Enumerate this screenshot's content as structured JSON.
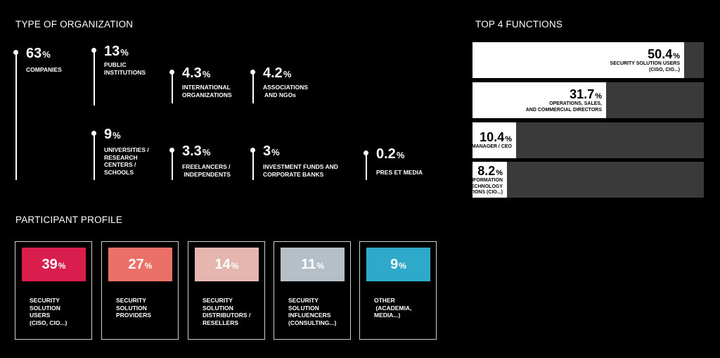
{
  "org": {
    "title": "TYPE OF ORGANIZATION",
    "items": [
      {
        "value": "63",
        "unit": "%",
        "label": "COMPANIES"
      },
      {
        "value": "13",
        "unit": "%",
        "label": "PUBLIC\nINSTITUTIONS"
      },
      {
        "value": "4.3",
        "unit": "%",
        "label": "INTERNATIONAL\nORGANIZATIONS"
      },
      {
        "value": "4.2",
        "unit": "%",
        "label": "ASSOCIATIONS\n AND NGOs"
      },
      {
        "value": "9",
        "unit": "%",
        "label": "UNIVERSITIES /\nRESEARCH\nCENTERS /\nSCHOOLS"
      },
      {
        "value": "3.3",
        "unit": "%",
        "label": "FREELANCERS /\n INDEPENDENTS"
      },
      {
        "value": "3",
        "unit": "%",
        "label": "INVESTMENT FUNDS AND\nCORPORATE BANKS"
      },
      {
        "value": "0.2",
        "unit": "%",
        "label": "PRES ET MEDIA"
      }
    ]
  },
  "profile": {
    "title": "PARTICIPANT PROFILE",
    "items": [
      {
        "value": "39",
        "unit": "%",
        "label": "SECURITY\nSOLUTION\nUSERS\n(CISO, CIO...)",
        "color": "#d91e4e"
      },
      {
        "value": "27",
        "unit": "%",
        "label": "SECURITY\nSOLUTION\nPROVIDERS",
        "color": "#ea7068"
      },
      {
        "value": "14",
        "unit": "%",
        "label": "SECURITY\nSOLUTION\nDISTRIBUTORS /\nRESELLERS",
        "color": "#e5b6ad"
      },
      {
        "value": "11",
        "unit": "%",
        "label": "SECURITY\nSOLUTION\nINFLUENCERS\n(CONSULTING...)",
        "color": "#b5bfc7"
      },
      {
        "value": "9",
        "unit": "%",
        "label": "OTHER\n (ACADEMIA,\nMEDIA...)",
        "color": "#2ea9c9"
      }
    ]
  },
  "functions": {
    "title": "TOP 4 FUNCTIONS",
    "items": [
      {
        "value": "50.4",
        "unit": "%",
        "label": "SECURITY SOLUTION USERS\n(CISO, CIO...)"
      },
      {
        "value": "31.7",
        "unit": "%",
        "label": "OPERATIONS, SALES,\nAND COMMERCIAL DIRECTORS"
      },
      {
        "value": "10.4",
        "unit": "%",
        "label": "GENERAL MANAGER / CEO"
      },
      {
        "value": "8.2",
        "unit": "%",
        "label": "OTHER INFORMATION\nTECHNOLOGY\nFUNCTIONS (CIO...)"
      }
    ]
  },
  "chart_data": [
    {
      "type": "bar",
      "title": "TYPE OF ORGANIZATION",
      "categories": [
        "COMPANIES",
        "PUBLIC INSTITUTIONS",
        "INTERNATIONAL ORGANIZATIONS",
        "ASSOCIATIONS AND NGOs",
        "UNIVERSITIES / RESEARCH CENTERS / SCHOOLS",
        "FREELANCERS / INDEPENDENTS",
        "INVESTMENT FUNDS AND CORPORATE BANKS",
        "PRES ET MEDIA"
      ],
      "values": [
        63,
        13,
        4.3,
        4.2,
        9,
        3.3,
        3,
        0.2
      ],
      "unit": "%"
    },
    {
      "type": "bar",
      "title": "PARTICIPANT PROFILE",
      "categories": [
        "SECURITY SOLUTION USERS (CISO, CIO...)",
        "SECURITY SOLUTION PROVIDERS",
        "SECURITY SOLUTION DISTRIBUTORS / RESELLERS",
        "SECURITY SOLUTION INFLUENCERS (CONSULTING...)",
        "OTHER (ACADEMIA, MEDIA...)"
      ],
      "values": [
        39,
        27,
        14,
        11,
        9
      ],
      "unit": "%"
    },
    {
      "type": "bar",
      "title": "TOP 4 FUNCTIONS",
      "categories": [
        "SECURITY SOLUTION USERS (CISO, CIO...)",
        "OPERATIONS, SALES, AND COMMERCIAL DIRECTORS",
        "GENERAL MANAGER / CEO",
        "OTHER INFORMATION TECHNOLOGY FUNCTIONS (CIO...)"
      ],
      "values": [
        50.4,
        31.7,
        10.4,
        8.2
      ],
      "unit": "%",
      "ylim": [
        0,
        55
      ]
    }
  ]
}
